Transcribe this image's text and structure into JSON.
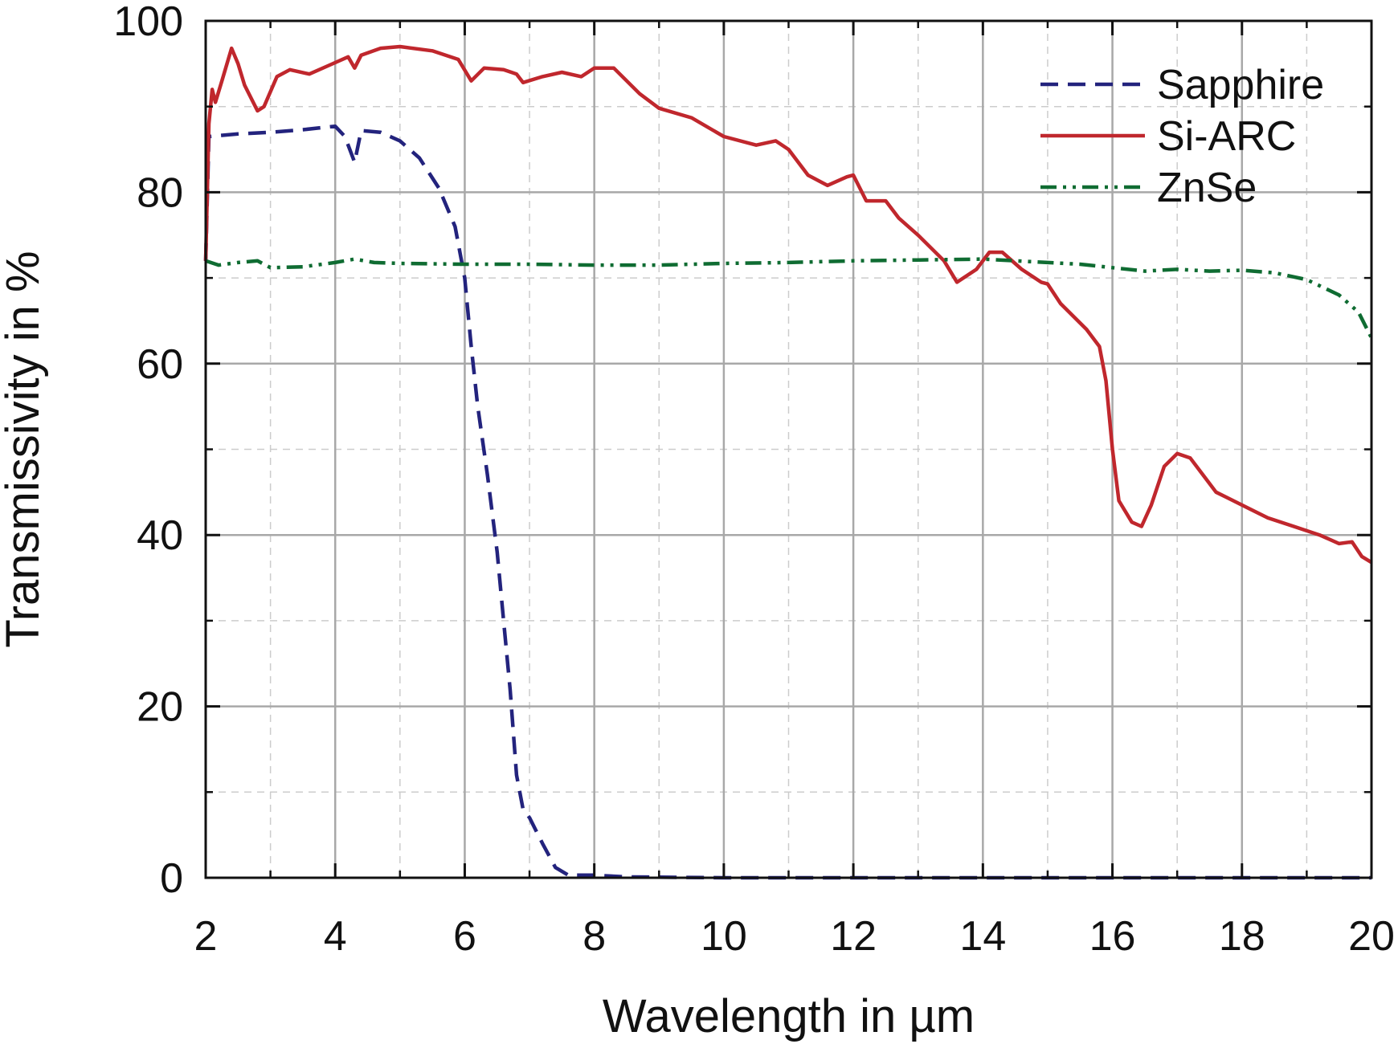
{
  "chart_data": {
    "type": "line",
    "xlabel": "Wavelength in µm",
    "ylabel": "Transmissivity in %",
    "xlim": [
      2,
      20
    ],
    "ylim": [
      0,
      100
    ],
    "xticks": [
      "2",
      "4",
      "6",
      "8",
      "10",
      "12",
      "14",
      "16",
      "18",
      "20"
    ],
    "yticks": [
      "0",
      "20",
      "40",
      "60",
      "80",
      "100"
    ],
    "grid": true,
    "legend": "top-right",
    "series": [
      {
        "name": "Sapphire",
        "color": "#23237d",
        "dash": "dashed",
        "points": [
          [
            2.0,
            72
          ],
          [
            2.05,
            86.5
          ],
          [
            2.5,
            86.8
          ],
          [
            3.0,
            87
          ],
          [
            3.5,
            87.3
          ],
          [
            4.0,
            87.7
          ],
          [
            4.15,
            86.5
          ],
          [
            4.3,
            83.5
          ],
          [
            4.4,
            87.2
          ],
          [
            4.7,
            87
          ],
          [
            5.0,
            86
          ],
          [
            5.3,
            84
          ],
          [
            5.6,
            80.5
          ],
          [
            5.85,
            76
          ],
          [
            6.0,
            70
          ],
          [
            6.1,
            62
          ],
          [
            6.2,
            55
          ],
          [
            6.35,
            47
          ],
          [
            6.5,
            38
          ],
          [
            6.6,
            30
          ],
          [
            6.7,
            22
          ],
          [
            6.8,
            12
          ],
          [
            6.9,
            8
          ],
          [
            7.0,
            7
          ],
          [
            7.2,
            4
          ],
          [
            7.4,
            1.2
          ],
          [
            7.6,
            0.3
          ],
          [
            8.0,
            0.3
          ],
          [
            8.5,
            0.1
          ],
          [
            10,
            0
          ],
          [
            12,
            0
          ],
          [
            14,
            0
          ],
          [
            16,
            0
          ],
          [
            18,
            0
          ],
          [
            20,
            0
          ]
        ]
      },
      {
        "name": "Si-ARC",
        "color": "#c0272d",
        "dash": "solid",
        "points": [
          [
            2.0,
            72
          ],
          [
            2.05,
            88
          ],
          [
            2.1,
            92
          ],
          [
            2.15,
            90.5
          ],
          [
            2.25,
            93
          ],
          [
            2.4,
            96.8
          ],
          [
            2.5,
            95
          ],
          [
            2.6,
            92.5
          ],
          [
            2.8,
            89.5
          ],
          [
            2.9,
            90
          ],
          [
            3.1,
            93.5
          ],
          [
            3.3,
            94.3
          ],
          [
            3.6,
            93.8
          ],
          [
            3.9,
            94.8
          ],
          [
            4.2,
            95.8
          ],
          [
            4.3,
            94.5
          ],
          [
            4.4,
            96
          ],
          [
            4.7,
            96.8
          ],
          [
            5.0,
            97
          ],
          [
            5.5,
            96.5
          ],
          [
            5.9,
            95.5
          ],
          [
            6.1,
            93
          ],
          [
            6.3,
            94.5
          ],
          [
            6.6,
            94.3
          ],
          [
            6.8,
            93.8
          ],
          [
            6.9,
            92.8
          ],
          [
            7.2,
            93.5
          ],
          [
            7.5,
            94
          ],
          [
            7.8,
            93.5
          ],
          [
            8.0,
            94.5
          ],
          [
            8.3,
            94.5
          ],
          [
            8.7,
            91.5
          ],
          [
            9.0,
            89.8
          ],
          [
            9.5,
            88.7
          ],
          [
            10.0,
            86.5
          ],
          [
            10.5,
            85.5
          ],
          [
            10.8,
            86
          ],
          [
            11.0,
            85
          ],
          [
            11.3,
            82
          ],
          [
            11.6,
            80.8
          ],
          [
            11.9,
            81.8
          ],
          [
            12.0,
            82
          ],
          [
            12.2,
            79
          ],
          [
            12.5,
            79
          ],
          [
            12.7,
            77
          ],
          [
            13.0,
            75
          ],
          [
            13.4,
            72
          ],
          [
            13.6,
            69.5
          ],
          [
            13.9,
            71
          ],
          [
            14.1,
            73
          ],
          [
            14.3,
            73
          ],
          [
            14.6,
            71
          ],
          [
            14.9,
            69.5
          ],
          [
            15.0,
            69.3
          ],
          [
            15.2,
            67
          ],
          [
            15.6,
            64
          ],
          [
            15.8,
            62
          ],
          [
            15.9,
            58
          ],
          [
            16.0,
            50
          ],
          [
            16.1,
            44
          ],
          [
            16.3,
            41.5
          ],
          [
            16.45,
            41
          ],
          [
            16.6,
            43.5
          ],
          [
            16.8,
            48
          ],
          [
            17.0,
            49.5
          ],
          [
            17.2,
            49
          ],
          [
            17.4,
            47
          ],
          [
            17.6,
            45
          ],
          [
            18.0,
            43.5
          ],
          [
            18.4,
            42
          ],
          [
            18.8,
            41
          ],
          [
            19.2,
            40
          ],
          [
            19.5,
            39
          ],
          [
            19.7,
            39.2
          ],
          [
            19.85,
            37.5
          ],
          [
            20.0,
            36.8
          ]
        ]
      },
      {
        "name": "ZnSe",
        "color": "#0f6c32",
        "dash": "dashdotdot",
        "points": [
          [
            2.0,
            72
          ],
          [
            2.2,
            71.5
          ],
          [
            2.5,
            71.8
          ],
          [
            2.8,
            72
          ],
          [
            3.0,
            71.2
          ],
          [
            3.5,
            71.3
          ],
          [
            4.0,
            71.8
          ],
          [
            4.3,
            72.2
          ],
          [
            4.6,
            71.8
          ],
          [
            5.0,
            71.7
          ],
          [
            6.0,
            71.6
          ],
          [
            7.0,
            71.6
          ],
          [
            8.0,
            71.5
          ],
          [
            9.0,
            71.5
          ],
          [
            10.0,
            71.7
          ],
          [
            11.0,
            71.8
          ],
          [
            12.0,
            72
          ],
          [
            13.0,
            72.1
          ],
          [
            14.0,
            72.2
          ],
          [
            15.0,
            71.8
          ],
          [
            15.5,
            71.6
          ],
          [
            16.0,
            71.2
          ],
          [
            16.5,
            70.8
          ],
          [
            17.0,
            71
          ],
          [
            17.5,
            70.8
          ],
          [
            18.0,
            70.9
          ],
          [
            18.5,
            70.6
          ],
          [
            19.0,
            69.8
          ],
          [
            19.5,
            68
          ],
          [
            19.8,
            66
          ],
          [
            20.0,
            63
          ]
        ]
      }
    ]
  }
}
